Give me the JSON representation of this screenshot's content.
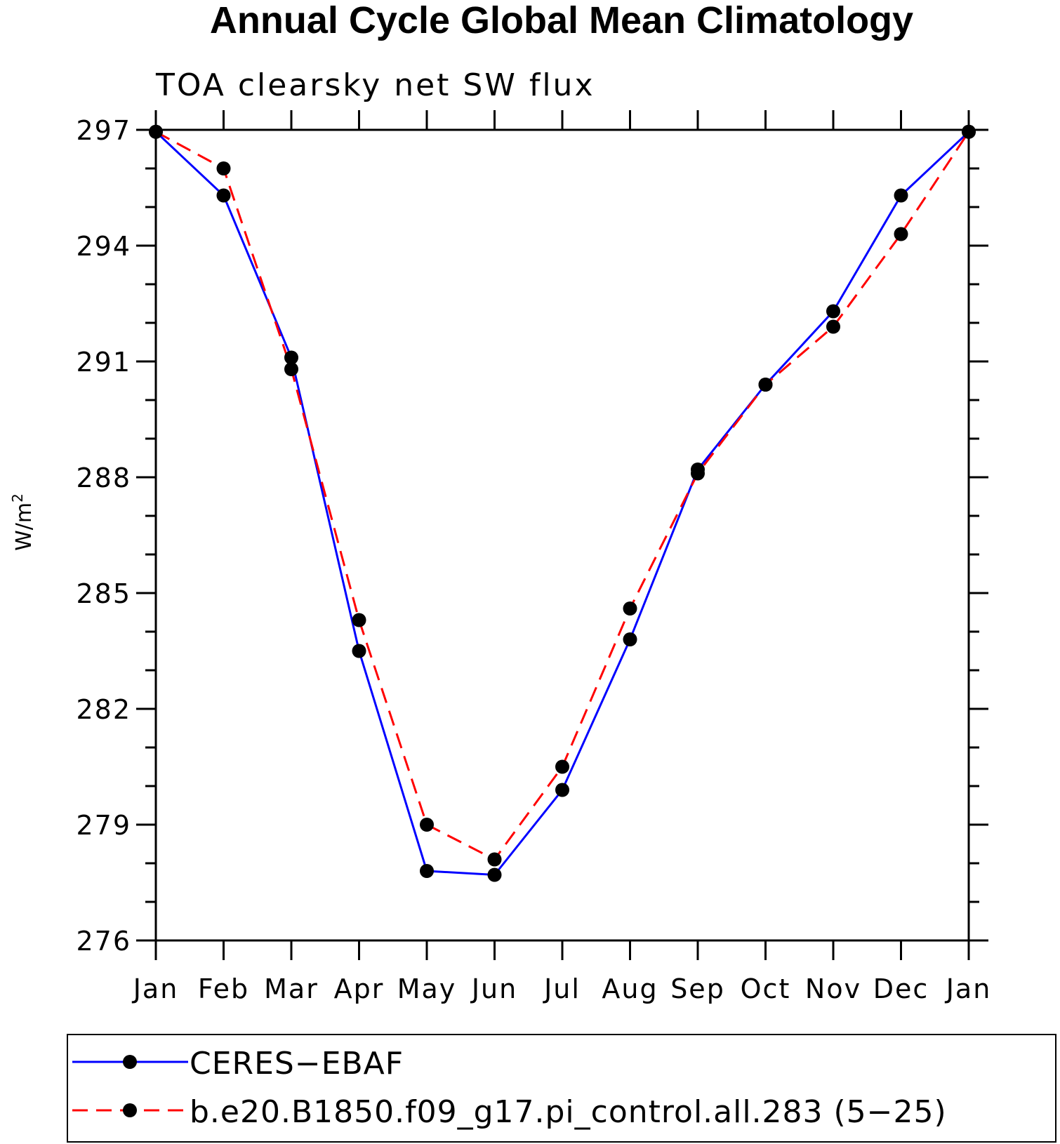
{
  "chart_data": {
    "type": "line",
    "title": "Annual Cycle Global Mean Climatology",
    "subtitle": "TOA clearsky net SW flux",
    "ylabel": "W/m",
    "ylabel_superscript": "2",
    "xlabel": "",
    "categories": [
      "Jan",
      "Feb",
      "Mar",
      "Apr",
      "May",
      "Jun",
      "Jul",
      "Aug",
      "Sep",
      "Oct",
      "Nov",
      "Dec",
      "Jan"
    ],
    "ylim": [
      276,
      297
    ],
    "yticks": [
      276,
      279,
      282,
      285,
      288,
      291,
      294,
      297
    ],
    "series": [
      {
        "name": "CERES−EBAF",
        "color": "#0000ff",
        "dash": "solid",
        "values": [
          296.95,
          295.3,
          291.1,
          283.5,
          277.8,
          277.7,
          279.9,
          283.8,
          288.2,
          290.4,
          292.3,
          295.3,
          296.95
        ]
      },
      {
        "name": "b.e20.B1850.f09_g17.pi_control.all.283 (5−25)",
        "color": "#ff0000",
        "dash": "dashed",
        "values": [
          296.95,
          296.0,
          290.8,
          284.3,
          279.0,
          278.1,
          280.5,
          284.6,
          288.1,
          290.4,
          291.9,
          294.3,
          296.95
        ]
      }
    ],
    "marker": "filled-circle",
    "marker_color": "#000000",
    "legend_position": "bottom"
  }
}
